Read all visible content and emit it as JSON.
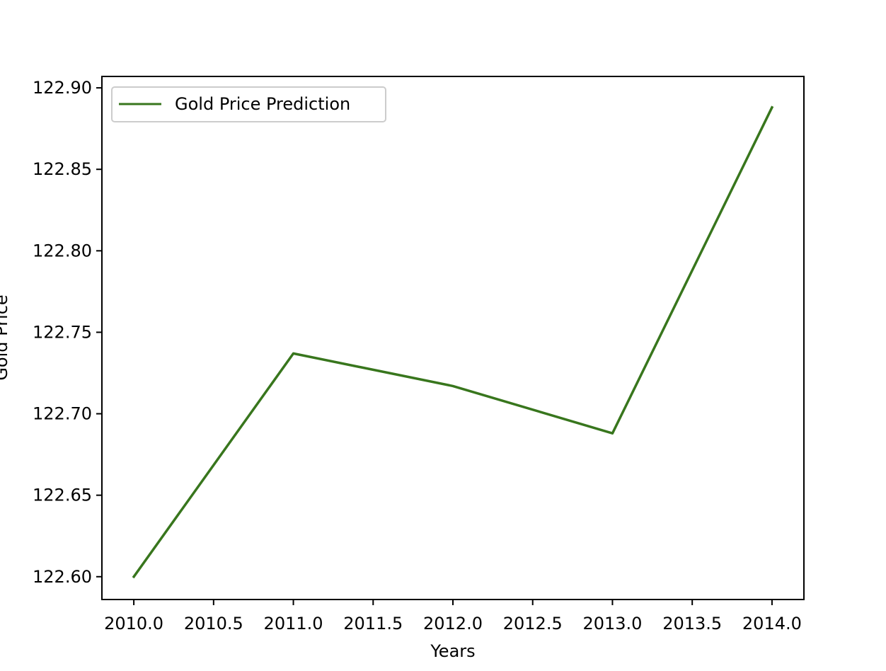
{
  "chart_data": {
    "type": "line",
    "title": "",
    "xlabel": "Years",
    "ylabel": "Gold Price",
    "xlim": [
      2009.8,
      2014.2
    ],
    "ylim": [
      122.586,
      122.907
    ],
    "x_ticks": [
      2010.0,
      2010.5,
      2011.0,
      2011.5,
      2012.0,
      2012.5,
      2013.0,
      2013.5,
      2014.0
    ],
    "x_tick_labels": [
      "2010.0",
      "2010.5",
      "2011.0",
      "2011.5",
      "2012.0",
      "2012.5",
      "2013.0",
      "2013.5",
      "2014.0"
    ],
    "y_ticks": [
      122.6,
      122.65,
      122.7,
      122.75,
      122.8,
      122.85,
      122.9
    ],
    "y_tick_labels": [
      "122.60",
      "122.65",
      "122.70",
      "122.75",
      "122.80",
      "122.85",
      "122.90"
    ],
    "grid": false,
    "legend_position": "top-left",
    "series": [
      {
        "name": "Gold Price Prediction",
        "color": "#38761d",
        "x": [
          2010,
          2011,
          2012,
          2013,
          2014
        ],
        "y": [
          122.6,
          122.737,
          122.717,
          122.688,
          122.888
        ]
      }
    ]
  }
}
